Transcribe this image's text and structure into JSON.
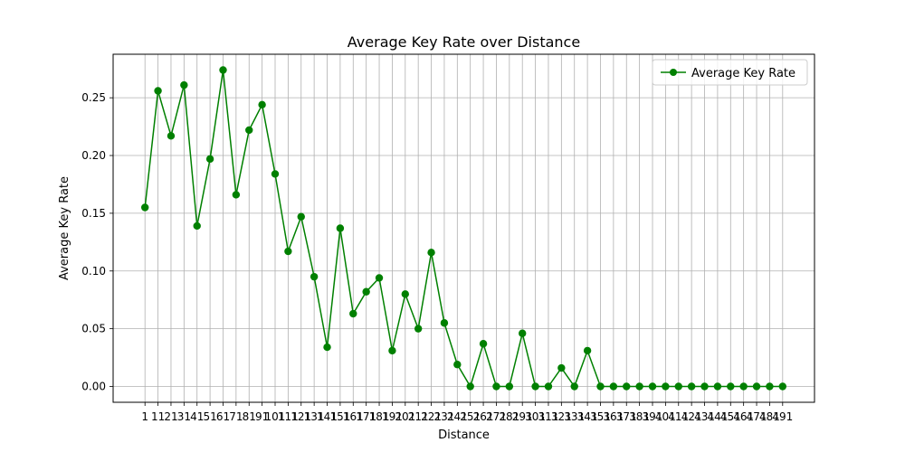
{
  "chart_data": {
    "type": "line",
    "title": "Average Key Rate over Distance",
    "xlabel": "Distance",
    "ylabel": "Average Key Rate",
    "x": [
      1,
      11,
      21,
      31,
      41,
      51,
      61,
      71,
      81,
      91,
      101,
      111,
      121,
      131,
      141,
      151,
      161,
      171,
      181,
      191,
      201,
      211,
      221,
      231,
      241,
      251,
      261,
      271,
      281,
      291,
      301,
      311,
      321,
      331,
      341,
      351,
      361,
      371,
      381,
      391,
      401,
      411,
      421,
      431,
      441,
      451,
      461,
      471,
      481,
      491
    ],
    "series": [
      {
        "name": "Average Key Rate",
        "color": "#008000",
        "values": [
          0.155,
          0.256,
          0.217,
          0.261,
          0.139,
          0.197,
          0.274,
          0.166,
          0.222,
          0.244,
          0.184,
          0.117,
          0.147,
          0.095,
          0.034,
          0.137,
          0.063,
          0.082,
          0.094,
          0.031,
          0.08,
          0.05,
          0.116,
          0.055,
          0.019,
          0.0,
          0.037,
          0.0,
          0.0,
          0.046,
          0.0,
          0.0,
          0.016,
          0.0,
          0.031,
          0.0,
          0.0,
          0.0,
          0.0,
          0.0,
          0.0,
          0.0,
          0.0,
          0.0,
          0.0,
          0.0,
          0.0,
          0.0,
          0.0,
          0.0
        ]
      }
    ],
    "yticks": [
      0.0,
      0.05,
      0.1,
      0.15,
      0.2,
      0.25
    ],
    "ytick_labels": [
      "0.00",
      "0.05",
      "0.10",
      "0.15",
      "0.20",
      "0.25"
    ],
    "ylim": [
      -0.0137,
      0.2877
    ],
    "grid": true,
    "legend_position": "top-right"
  }
}
